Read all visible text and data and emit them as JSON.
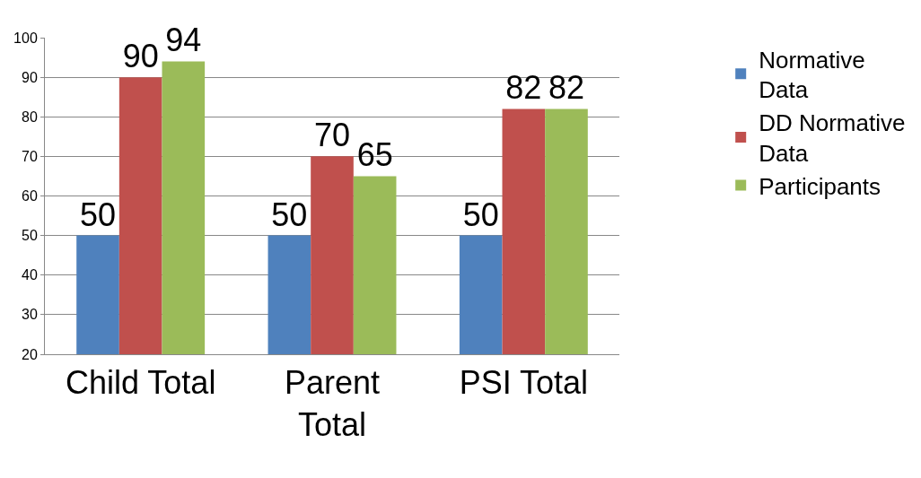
{
  "chart_data": {
    "type": "bar",
    "categories": [
      "Child Total",
      "Parent Total",
      "PSI Total"
    ],
    "series": [
      {
        "name": "Normative Data",
        "color": "#4f81bd",
        "values": [
          50,
          50,
          50
        ]
      },
      {
        "name": "DD Normative Data",
        "color": "#c0504d",
        "values": [
          90,
          70,
          82
        ]
      },
      {
        "name": "Participants",
        "color": "#9bbb59",
        "values": [
          94,
          65,
          82
        ]
      }
    ],
    "ylim": [
      20,
      100
    ],
    "yticks": [
      20,
      30,
      40,
      50,
      60,
      70,
      80,
      90,
      100
    ],
    "grid": "y",
    "legend": "right",
    "data_labels": true
  }
}
